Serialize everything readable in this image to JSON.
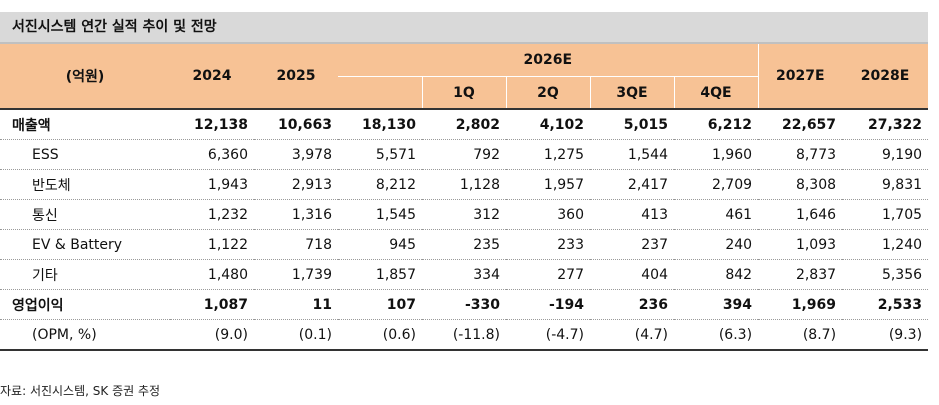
{
  "title": "서진시스템 연간 실적 추이 및 전망",
  "header": {
    "unit_label": "(억원)",
    "years": [
      "2024",
      "2025"
    ],
    "group_label": "2026E",
    "quarters": [
      "1Q",
      "2Q",
      "3QE",
      "4QE"
    ],
    "forecast_years": [
      "2027E",
      "2028E"
    ]
  },
  "rows": [
    {
      "label": "매출액",
      "values": [
        "12,138",
        "10,663",
        "18,130",
        "2,802",
        "4,102",
        "5,015",
        "6,212",
        "22,657",
        "27,322"
      ]
    },
    {
      "label": "ESS",
      "values": [
        "6,360",
        "3,978",
        "5,571",
        "792",
        "1,275",
        "1,544",
        "1,960",
        "8,773",
        "9,190"
      ]
    },
    {
      "label": "반도체",
      "values": [
        "1,943",
        "2,913",
        "8,212",
        "1,128",
        "1,957",
        "2,417",
        "2,709",
        "8,308",
        "9,831"
      ]
    },
    {
      "label": "통신",
      "values": [
        "1,232",
        "1,316",
        "1,545",
        "312",
        "360",
        "413",
        "461",
        "1,646",
        "1,705"
      ]
    },
    {
      "label": "EV & Battery",
      "values": [
        "1,122",
        "718",
        "945",
        "235",
        "233",
        "237",
        "240",
        "1,093",
        "1,240"
      ]
    },
    {
      "label": "기타",
      "values": [
        "1,480",
        "1,739",
        "1,857",
        "334",
        "277",
        "404",
        "842",
        "2,837",
        "5,356"
      ]
    },
    {
      "label": "영업이익",
      "values": [
        "1,087",
        "11",
        "107",
        "-330",
        "-194",
        "236",
        "394",
        "1,969",
        "2,533"
      ]
    },
    {
      "label": "(OPM, %)",
      "values": [
        "(9.0)",
        "(0.1)",
        "(0.6)",
        "(-11.8)",
        "(-4.7)",
        "(4.7)",
        "(6.3)",
        "(8.7)",
        "(9.3)"
      ]
    }
  ],
  "source": "자료: 서진시스템, SK 증권 추정"
}
